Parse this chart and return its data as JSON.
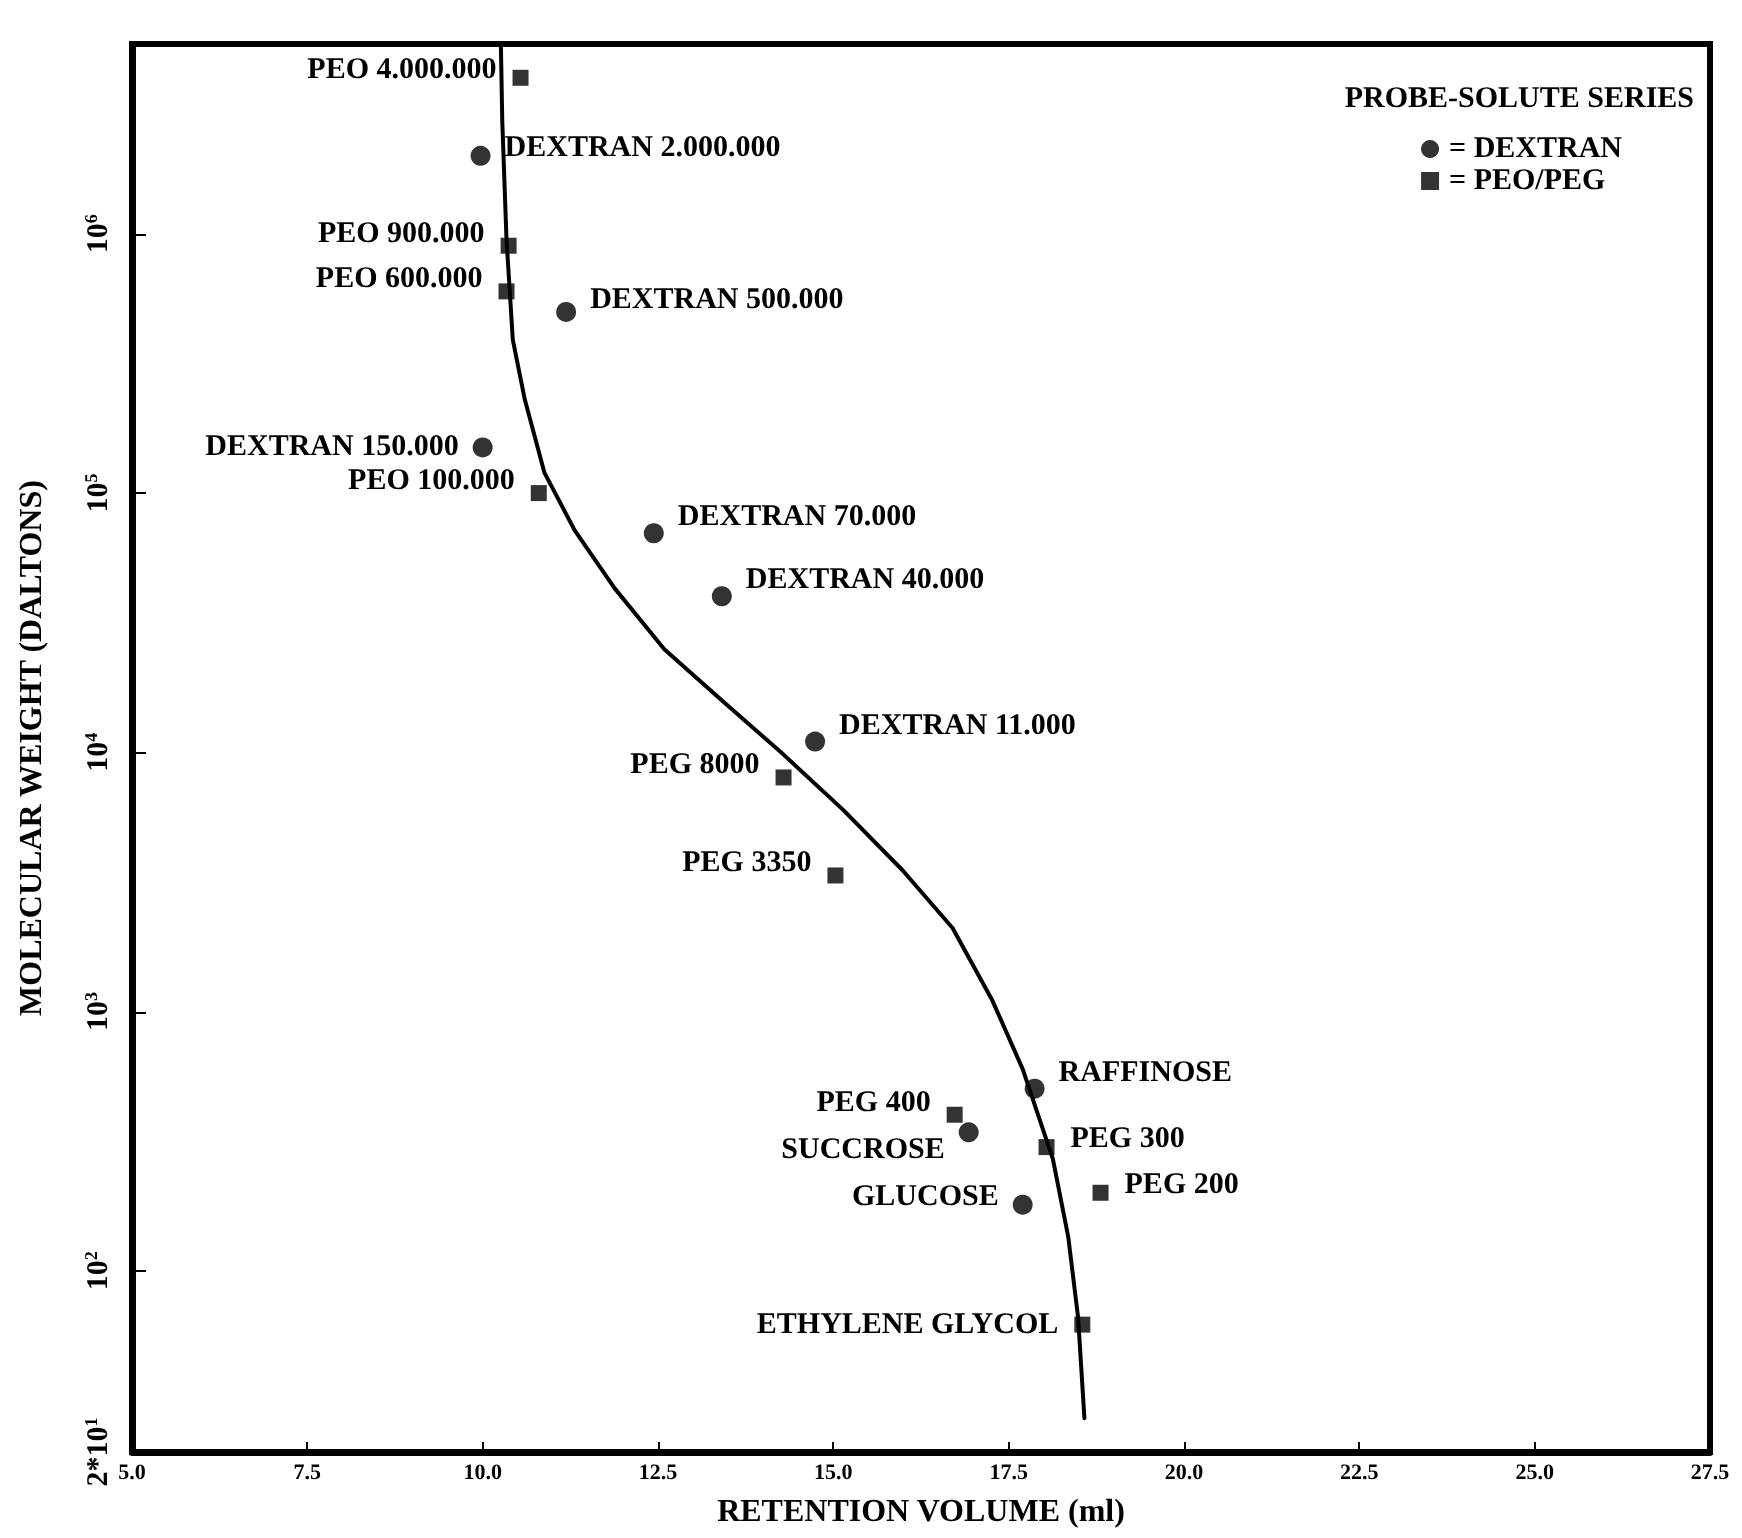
{
  "chart_data": {
    "type": "scatter",
    "xlabel": "RETENTION VOLUME (ml)",
    "ylabel": "MOLECULAR WEIGHT (DALTONS)",
    "legend_title": "PROBE-SOLUTE SERIES",
    "legend": "top right",
    "log": "y",
    "grid": false,
    "xlim": [
      5,
      27.5
    ],
    "xticks": [
      {
        "value": 5,
        "label": "5.0"
      },
      {
        "value": 7.5,
        "label": "7.5"
      },
      {
        "value": 10,
        "label": "10.0"
      },
      {
        "value": 12.5,
        "label": "12.5"
      },
      {
        "value": 15,
        "label": "15.0"
      },
      {
        "value": 17.5,
        "label": "17.5"
      },
      {
        "value": 20,
        "label": "20.0"
      },
      {
        "value": 22.5,
        "label": "22.5"
      },
      {
        "value": 25,
        "label": "25.0"
      },
      {
        "value": 27.5,
        "label": "27.5"
      }
    ],
    "ylim": [
      20,
      5400000
    ],
    "yticks": [
      {
        "value": 20,
        "label": "2*10$^{1}$"
      },
      {
        "value": 100,
        "label": "10$^{2}$"
      },
      {
        "value": 1000,
        "label": "10$^{3}$"
      },
      {
        "value": 10000,
        "label": "10$^{4}$"
      },
      {
        "value": 100000,
        "label": "10$^{5}$"
      },
      {
        "value": 1000000,
        "label": "10$^{6}$"
      }
    ],
    "series": [
      {
        "name": "= DEXTRAN",
        "color": "#000000",
        "marker": "circle",
        "x": [
          9.97,
          11.19,
          10.0,
          12.44,
          13.41,
          14.74,
          17.87,
          16.93,
          17.7
        ],
        "values": [
          2000000,
          500000,
          150000,
          70000,
          40000,
          11000,
          504,
          342,
          180
        ]
      },
      {
        "name": "= PEO/PEG",
        "color": "#000000",
        "marker": "square",
        "x": [
          10.54,
          10.37,
          10.34,
          10.8,
          14.29,
          15.03,
          16.73,
          18.04,
          18.81,
          18.55
        ],
        "values": [
          4000000,
          900000,
          600000,
          100000,
          8000,
          3350,
          400,
          300,
          200,
          62
        ]
      },
      {
        "type": "line",
        "color": "#000000",
        "marker": "none",
        "line_style": "solid",
        "x": [
          10.26,
          10.28,
          10.34,
          10.43,
          10.6,
          10.88,
          11.31,
          11.88,
          12.59,
          13.44,
          14.29,
          15.14,
          15.99,
          16.7,
          17.27,
          17.7,
          18.13,
          18.35,
          18.49,
          18.58
        ],
        "values": [
          5300000,
          2700000,
          950000,
          390000,
          230000,
          120000,
          72000,
          43000,
          25000,
          15600,
          9800,
          6000,
          3500,
          2100,
          1100,
          600,
          270,
          135,
          66,
          27
        ]
      }
    ],
    "annotations": [
      {
        "text": "PEO 4.000.000",
        "x": 10.54,
        "y": 4000000
      },
      {
        "text": "DEXTRAN 2.000.000",
        "x": 9.97,
        "y": 2000000
      },
      {
        "text": "PEO 900.000",
        "x": 10.37,
        "y": 900000
      },
      {
        "text": "PEO 600.000",
        "x": 10.34,
        "y": 600000
      },
      {
        "text": "DEXTRAN 500.000",
        "x": 11.19,
        "y": 500000
      },
      {
        "text": "DEXTRAN 150.000",
        "x": 10.0,
        "y": 150000
      },
      {
        "text": "PEO 100.000",
        "x": 10.8,
        "y": 100000
      },
      {
        "text": "DEXTRAN 70.000",
        "x": 12.44,
        "y": 70000
      },
      {
        "text": "DEXTRAN 40.000",
        "x": 13.41,
        "y": 40000
      },
      {
        "text": "DEXTRAN 11.000",
        "x": 14.74,
        "y": 11000
      },
      {
        "text": "PEG 8000",
        "x": 14.29,
        "y": 8000
      },
      {
        "text": "PEG 3350",
        "x": 15.03,
        "y": 3350
      },
      {
        "text": "RAFFINOSE",
        "x": 17.87,
        "y": 504
      },
      {
        "text": "PEG 400",
        "x": 16.73,
        "y": 400
      },
      {
        "text": "SUCCROSE",
        "x": 16.93,
        "y": 342
      },
      {
        "text": "PEG 300",
        "x": 18.04,
        "y": 300
      },
      {
        "text": "GLUCOSE",
        "x": 17.7,
        "y": 180
      },
      {
        "text": "PEG 200",
        "x": 18.81,
        "y": 200
      },
      {
        "text": "ETHYLENE GLYCOL",
        "x": 18.55,
        "y": 62
      }
    ]
  }
}
